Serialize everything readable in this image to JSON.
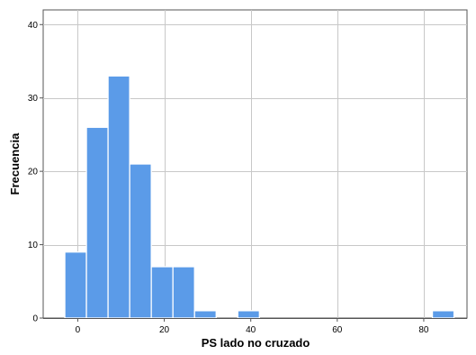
{
  "chart_data": {
    "type": "bar",
    "subtype": "histogram",
    "xlabel": "PS lado no cruzado",
    "ylabel": "Frecuencia",
    "xlim": [
      -8,
      90
    ],
    "ylim": [
      0,
      42
    ],
    "x_ticks": [
      0,
      20,
      40,
      60,
      80
    ],
    "y_ticks": [
      0,
      10,
      20,
      30,
      40
    ],
    "grid": true,
    "bar_color": "#5b9be8",
    "bins": [
      {
        "start": -3,
        "end": 2,
        "count": 9
      },
      {
        "start": 2,
        "end": 7,
        "count": 26
      },
      {
        "start": 7,
        "end": 12,
        "count": 33
      },
      {
        "start": 12,
        "end": 17,
        "count": 21
      },
      {
        "start": 17,
        "end": 22,
        "count": 7
      },
      {
        "start": 22,
        "end": 27,
        "count": 7
      },
      {
        "start": 27,
        "end": 32,
        "count": 1
      },
      {
        "start": 37,
        "end": 42,
        "count": 1
      },
      {
        "start": 82,
        "end": 87,
        "count": 1
      }
    ]
  }
}
